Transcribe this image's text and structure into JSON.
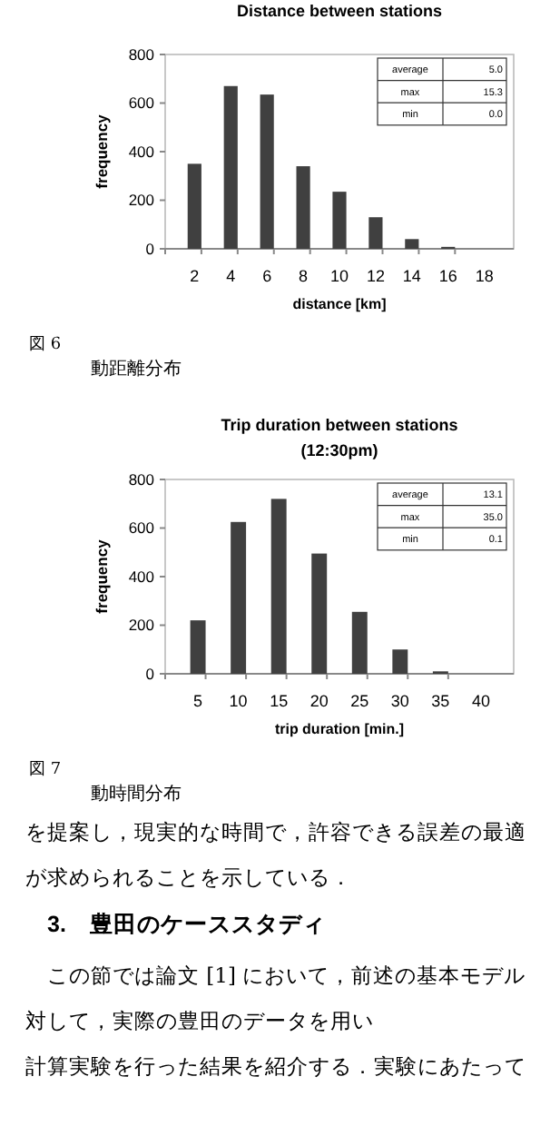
{
  "chart_data": [
    {
      "type": "bar",
      "title": "Distance between stations",
      "xlabel": "distance [km]",
      "ylabel": "frequency",
      "categories": [
        "2",
        "4",
        "6",
        "8",
        "10",
        "12",
        "14",
        "16",
        "18"
      ],
      "values": [
        350,
        670,
        635,
        340,
        235,
        130,
        40,
        8,
        0
      ],
      "color": "#404040",
      "ylim": [
        0,
        800
      ],
      "yticks": [
        0,
        200,
        400,
        600,
        800
      ],
      "grid": false,
      "annotations": [
        "average",
        "5.0",
        "max",
        "15.3",
        "min",
        "0.0",
        "図 6",
        "動距離分布"
      ]
    },
    {
      "type": "bar",
      "title": "Trip duration between stations",
      "subtitle": "(12:30pm)",
      "xlabel": "trip duration [min.]",
      "ylabel": "frequency",
      "categories": [
        "5",
        "10",
        "15",
        "20",
        "25",
        "30",
        "35",
        "40"
      ],
      "values": [
        220,
        625,
        720,
        495,
        255,
        100,
        10,
        0
      ],
      "color": "#404040",
      "ylim": [
        0,
        800
      ],
      "yticks": [
        0,
        200,
        400,
        600,
        800
      ],
      "grid": false,
      "annotations": [
        "average",
        "13.1",
        "max",
        "35.0",
        "min",
        "0.1",
        "図 7",
        "動時間分布"
      ]
    },
    {
      "type": "other",
      "annotations": [
        "を提案し，現実的な時間で，許容できる誤差の最適",
        "が求められることを示している．",
        "3.　豊田のケーススタディ",
        "この節では論文 [1] において，前述の基本モデル",
        "対して，実際の豊田のデータを用い",
        "計算実験を行った結果を紹介する．実験にあたって"
      ]
    }
  ]
}
